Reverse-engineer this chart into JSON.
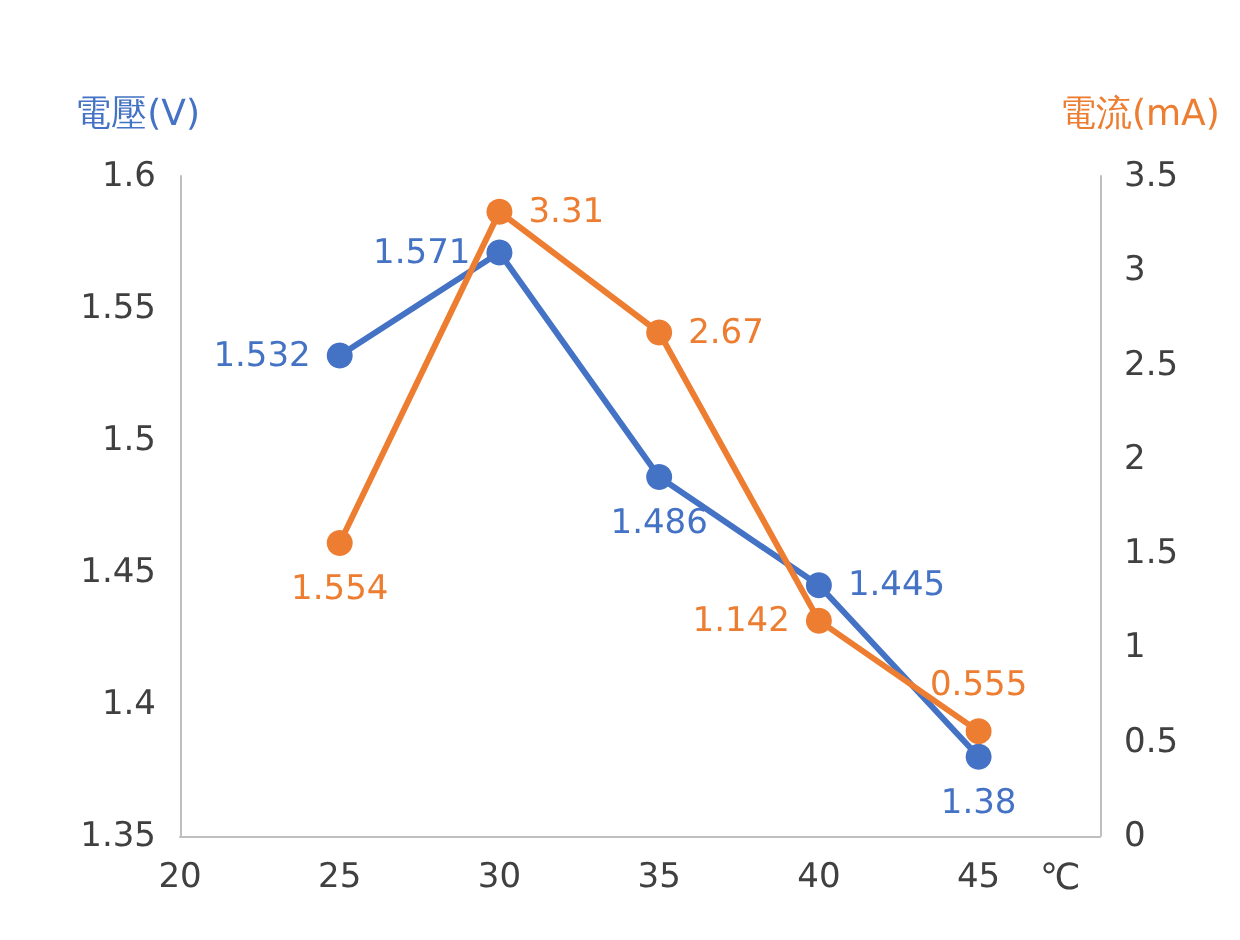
{
  "chart_data": {
    "type": "line",
    "x": [
      25,
      30,
      35,
      40,
      45
    ],
    "xlabel": "℃",
    "ylabel": "電壓(V)",
    "y2label": "電流(mA)",
    "xlim": [
      20,
      48.8
    ],
    "xticks": [
      20,
      25,
      30,
      35,
      40,
      45
    ],
    "ylim": [
      1.35,
      1.6
    ],
    "yticks": [
      1.35,
      1.4,
      1.45,
      1.5,
      1.55,
      1.6
    ],
    "y2lim": [
      0,
      3.5
    ],
    "y2ticks": [
      0,
      0.5,
      1,
      1.5,
      2,
      2.5,
      3,
      3.5
    ],
    "series": [
      {
        "color": "#4472c4",
        "values": [
          1.532,
          1.571,
          1.486,
          1.445,
          1.38
        ]
      },
      {
        "color": "#ed7d31",
        "values": [
          1.554,
          3.31,
          2.67,
          1.142,
          0.555
        ],
        "axis": "y2"
      }
    ],
    "data_labels": true,
    "grid": false,
    "marker": "circle",
    "line_style": "solid"
  }
}
